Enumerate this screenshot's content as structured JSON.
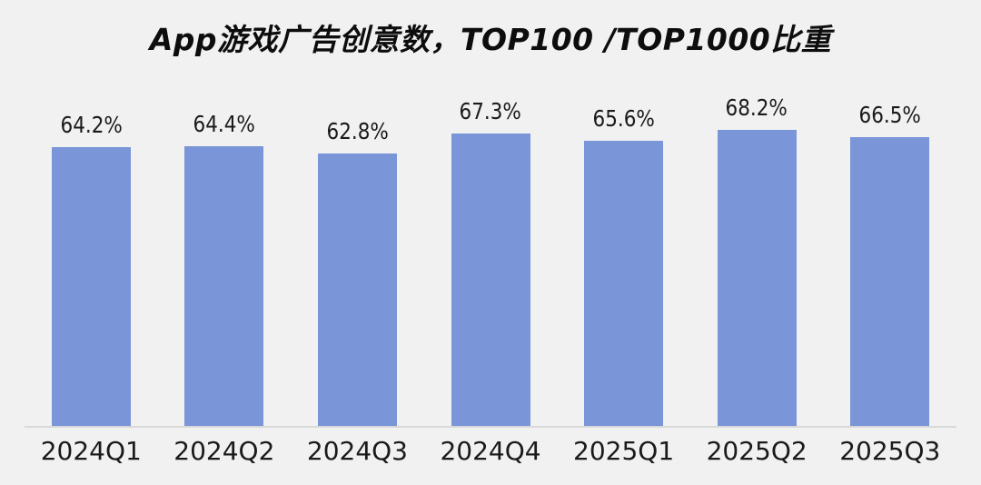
{
  "page": {
    "background_color": "#f1f1f2"
  },
  "chart_data": {
    "type": "bar",
    "title": "App游戏广告创意数，TOP100 /TOP1000比重",
    "categories": [
      "2024Q1",
      "2024Q2",
      "2024Q3",
      "2024Q4",
      "2025Q1",
      "2025Q2",
      "2025Q3"
    ],
    "values": [
      64.2,
      64.4,
      62.8,
      67.3,
      65.6,
      68.2,
      66.5
    ],
    "value_labels": [
      "64.2%",
      "64.4%",
      "62.8%",
      "67.3%",
      "65.6%",
      "68.2%",
      "66.5%"
    ],
    "xlabel": "",
    "ylabel": "",
    "ylim": [
      0,
      78
    ],
    "grid": false,
    "legend": false,
    "data_labels": true,
    "bar_color": "#7a96d8",
    "axis_line_color": "#d9d9d9",
    "label_color": "#1a1a1a",
    "title_color": "#0d0d0d"
  }
}
